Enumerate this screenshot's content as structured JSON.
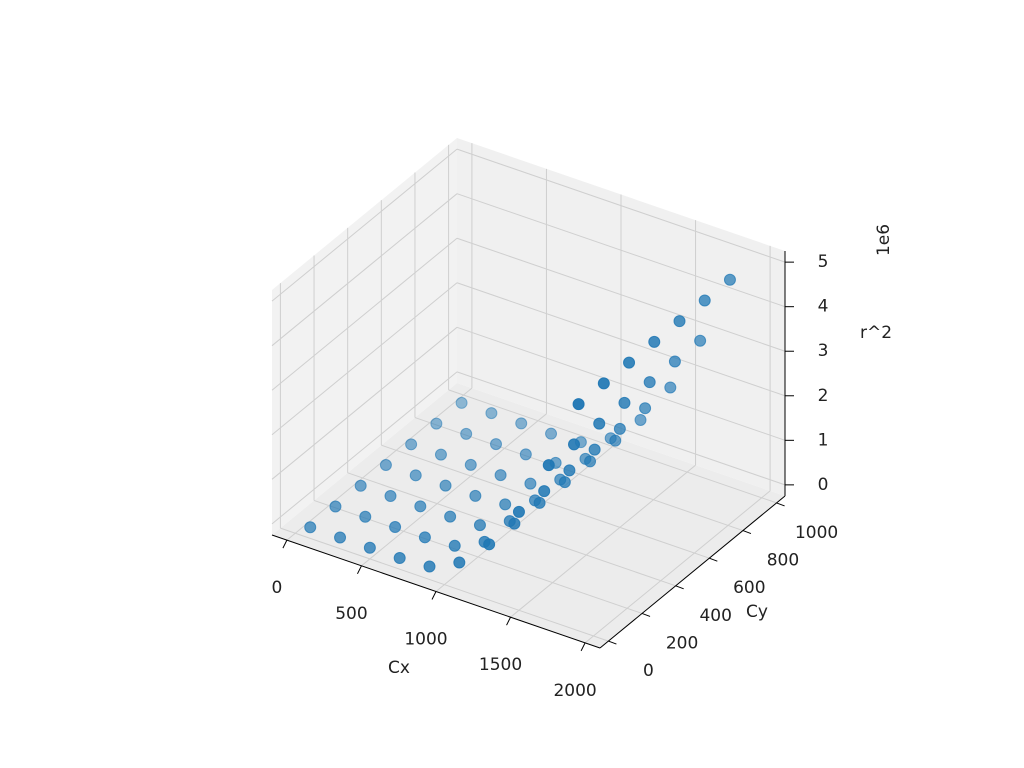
{
  "chart_data": {
    "type": "scatter3d",
    "x_label": "Cx",
    "y_label": "Cy",
    "z_label": "r^2",
    "z_offset_label": "1e6",
    "color": "#1f77b4",
    "x": [
      100,
      300,
      500,
      700,
      900,
      1100,
      1300,
      1500,
      1700,
      1900,
      100,
      300,
      500,
      700,
      900,
      1100,
      1300,
      1500,
      1700,
      1900,
      100,
      300,
      500,
      700,
      900,
      1100,
      1300,
      1500,
      1700,
      1900,
      100,
      300,
      500,
      700,
      900,
      1100,
      1300,
      1500,
      1700,
      1900,
      100,
      300,
      500,
      700,
      900,
      1100,
      1300,
      1500,
      1700,
      1900,
      100,
      300,
      500,
      700,
      900,
      1100,
      1300,
      1500,
      1700,
      1900,
      100,
      300,
      500,
      700,
      900,
      1100,
      1300,
      1500,
      1700,
      1900
    ],
    "y": [
      0,
      0,
      0,
      0,
      0,
      0,
      0,
      0,
      0,
      0,
      150,
      150,
      150,
      150,
      150,
      150,
      150,
      150,
      150,
      150,
      300,
      300,
      300,
      300,
      300,
      300,
      300,
      300,
      300,
      300,
      450,
      450,
      450,
      450,
      450,
      450,
      450,
      450,
      450,
      450,
      600,
      600,
      600,
      600,
      600,
      600,
      600,
      600,
      600,
      600,
      750,
      750,
      750,
      750,
      750,
      750,
      750,
      750,
      750,
      750,
      900,
      900,
      900,
      900,
      900,
      900,
      900,
      900,
      900,
      900
    ],
    "z": [
      0,
      0,
      0,
      0,
      40000,
      360000,
      1000000,
      1960000,
      3240000,
      4840000,
      0,
      0,
      0,
      0,
      40000,
      360000,
      1000000,
      1960000,
      3240000,
      4840000,
      0,
      0,
      0,
      0,
      40000,
      360000,
      1000000,
      1960000,
      3240000,
      4840000,
      0,
      0,
      0,
      0,
      40000,
      360000,
      1000000,
      1960000,
      3240000,
      4840000,
      0,
      0,
      0,
      0,
      40000,
      360000,
      1000000,
      1960000,
      3240000,
      4840000,
      0,
      0,
      0,
      0,
      40000,
      360000,
      1000000,
      1960000,
      3240000,
      4840000,
      0,
      0,
      0,
      0,
      40000,
      360000,
      1000000,
      1960000,
      3240000,
      4840000
    ],
    "xlim": [
      -100,
      2100
    ],
    "ylim": [
      -50,
      1050
    ],
    "zlim": [
      -250000,
      5250000
    ],
    "xticks": [
      0,
      500,
      1000,
      1500,
      2000
    ],
    "yticks": [
      0,
      200,
      400,
      600,
      800,
      1000
    ],
    "zticks": [
      {
        "value": 0,
        "label": "0"
      },
      {
        "value": 1000000,
        "label": "1"
      },
      {
        "value": 2000000,
        "label": "2"
      },
      {
        "value": 3000000,
        "label": "3"
      },
      {
        "value": 4000000,
        "label": "4"
      },
      {
        "value": 5000000,
        "label": "5"
      }
    ],
    "grid": true
  }
}
